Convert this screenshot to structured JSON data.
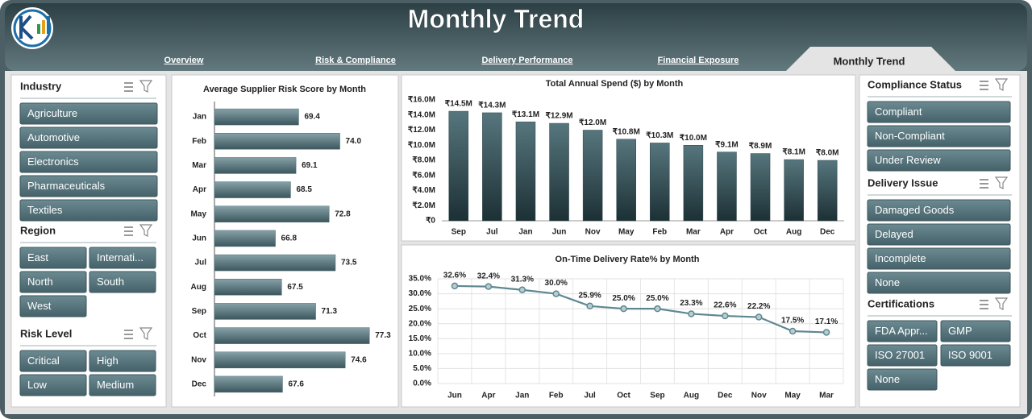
{
  "header": {
    "title": "Monthly Trend"
  },
  "tabs": [
    "Overview",
    "Risk & Compliance",
    "Delivery Performance",
    "Financial Exposure",
    "Monthly Trend"
  ],
  "slicers": [
    {
      "title": "Industry",
      "items": [
        "Agriculture",
        "Automotive",
        "Electronics",
        "Pharmaceuticals",
        "Textiles"
      ]
    },
    {
      "title": "Region",
      "items": [
        "East",
        "Internati...",
        "North",
        "South",
        "West"
      ]
    },
    {
      "title": "Risk Level",
      "items": [
        "Critical",
        "High",
        "Low",
        "Medium"
      ]
    },
    {
      "title": "Compliance Status",
      "items": [
        "Compliant",
        "Non-Compliant",
        "Under Review"
      ]
    },
    {
      "title": "Delivery Issue",
      "items": [
        "Damaged Goods",
        "Delayed",
        "Incomplete",
        "None"
      ]
    },
    {
      "title": "Certifications",
      "items": [
        "FDA Appr...",
        "GMP",
        "ISO 27001",
        "ISO 9001",
        "None"
      ]
    }
  ],
  "chart_data": [
    {
      "type": "barh",
      "title": "Average Supplier Risk Score by Month",
      "categories": [
        "Jan",
        "Feb",
        "Mar",
        "Apr",
        "May",
        "Jun",
        "Jul",
        "Aug",
        "Sep",
        "Oct",
        "Nov",
        "Dec"
      ],
      "values": [
        69.4,
        74.0,
        69.1,
        68.5,
        72.8,
        66.8,
        73.5,
        67.5,
        71.3,
        77.3,
        74.6,
        67.6
      ],
      "value_labels": [
        "69.4",
        "74.0",
        "69.1",
        "68.5",
        "72.8",
        "66.8",
        "73.5",
        "67.5",
        "71.3",
        "77.3",
        "74.6",
        "67.6"
      ],
      "xlim": [
        60,
        78
      ],
      "color": "#4f6d74"
    },
    {
      "type": "bar",
      "title": "Total Annual Spend ($) by Month",
      "categories": [
        "Sep",
        "Jul",
        "Jan",
        "Jun",
        "Nov",
        "May",
        "Feb",
        "Mar",
        "Apr",
        "Oct",
        "Aug",
        "Dec"
      ],
      "values": [
        14500000,
        14300000,
        13100000,
        12900000,
        12000000,
        10800000,
        10300000,
        10000000,
        9100000,
        8900000,
        8100000,
        8000000
      ],
      "value_labels": [
        "₹14.5M",
        "₹14.3M",
        "₹13.1M",
        "₹12.9M",
        "₹12.0M",
        "₹10.8M",
        "₹10.3M",
        "₹10.0M",
        "₹9.1M",
        "₹8.9M",
        "₹8.1M",
        "₹8.0M"
      ],
      "ylim": [
        0,
        16000000
      ],
      "yticks": [
        {
          "value": 0,
          "label": "₹0"
        },
        {
          "value": 2000000,
          "label": "₹2.0M"
        },
        {
          "value": 4000000,
          "label": "₹4.0M"
        },
        {
          "value": 6000000,
          "label": "₹6.0M"
        },
        {
          "value": 8000000,
          "label": "₹8.0M"
        },
        {
          "value": 10000000,
          "label": "₹10.0M"
        },
        {
          "value": 12000000,
          "label": "₹12.0M"
        },
        {
          "value": 14000000,
          "label": "₹14.0M"
        },
        {
          "value": 16000000,
          "label": "₹16.0M"
        }
      ],
      "grid": false,
      "color": "#2c454b"
    },
    {
      "type": "line",
      "title": "On-Time Delivery Rate% by Month",
      "categories": [
        "Jun",
        "Apr",
        "Jan",
        "Feb",
        "Jul",
        "Oct",
        "Sep",
        "Aug",
        "Dec",
        "Nov",
        "May",
        "Mar"
      ],
      "values": [
        32.6,
        32.4,
        31.3,
        30.0,
        25.9,
        25.0,
        25.0,
        23.3,
        22.6,
        22.2,
        17.5,
        17.1
      ],
      "value_labels": [
        "32.6%",
        "32.4%",
        "31.3%",
        "30.0%",
        "25.9%",
        "25.0%",
        "25.0%",
        "23.3%",
        "22.6%",
        "22.2%",
        "17.5%",
        "17.1%"
      ],
      "ylim": [
        0,
        35
      ],
      "yticks": [
        {
          "value": 0,
          "label": "0.0%"
        },
        {
          "value": 5,
          "label": "5.0%"
        },
        {
          "value": 10,
          "label": "10.0%"
        },
        {
          "value": 15,
          "label": "15.0%"
        },
        {
          "value": 20,
          "label": "20.0%"
        },
        {
          "value": 25,
          "label": "25.0%"
        },
        {
          "value": 30,
          "label": "30.0%"
        },
        {
          "value": 35,
          "label": "35.0%"
        }
      ],
      "grid": true,
      "color": "#5e8891"
    }
  ]
}
